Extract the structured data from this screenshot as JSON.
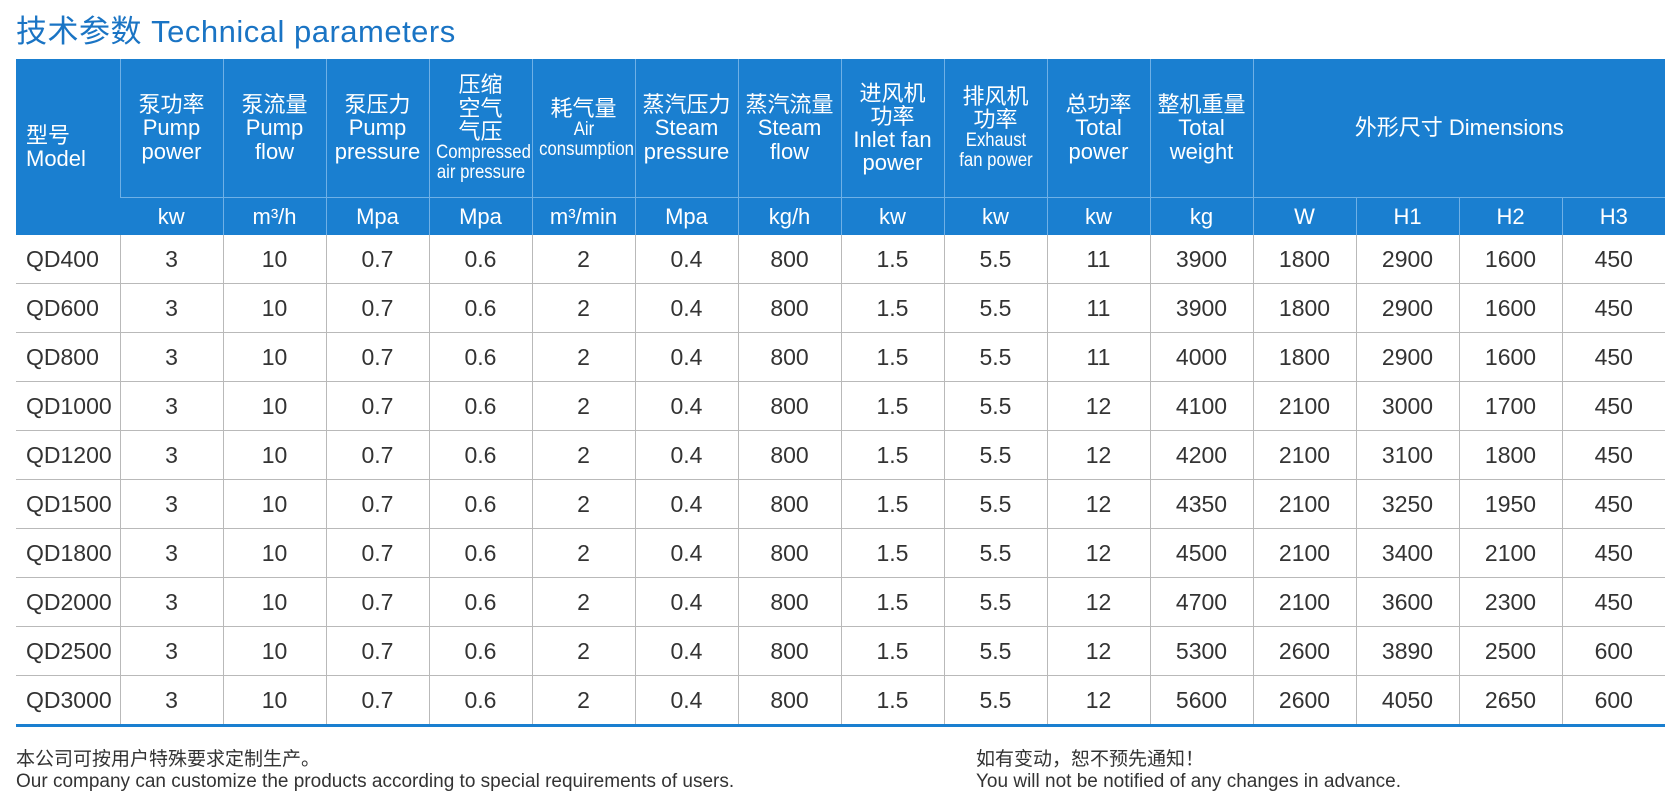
{
  "title": "技术参数 Technical parameters",
  "header": {
    "model": {
      "cn": "型号",
      "en": "Model"
    },
    "columns": [
      {
        "cn": "泵功率",
        "en": [
          "Pump",
          "power"
        ],
        "unit": "kw"
      },
      {
        "cn": "泵流量",
        "en": [
          "Pump",
          "flow"
        ],
        "unit": "m³/h"
      },
      {
        "cn": "泵压力",
        "en": [
          "Pump",
          "pressure"
        ],
        "unit": "Mpa"
      },
      {
        "cn": [
          "压缩",
          "空气",
          "气压"
        ],
        "en": [
          "Compressed",
          "air pressure"
        ],
        "unit": "Mpa"
      },
      {
        "cn": "耗气量",
        "en": [
          "Air",
          "consumption"
        ],
        "unit": "m³/min"
      },
      {
        "cn": "蒸汽压力",
        "en": [
          "Steam",
          "pressure"
        ],
        "unit": "Mpa"
      },
      {
        "cn": "蒸汽流量",
        "en": [
          "Steam",
          "flow"
        ],
        "unit": "kg/h"
      },
      {
        "cn": [
          "进风机",
          "功率"
        ],
        "en": [
          "Inlet fan",
          "power"
        ],
        "unit": "kw"
      },
      {
        "cn": [
          "排风机",
          "功率"
        ],
        "en": [
          "Exhaust",
          "fan power"
        ],
        "unit": "kw"
      },
      {
        "cn": "总功率",
        "en": [
          "Total",
          "power"
        ],
        "unit": "kw"
      },
      {
        "cn": "整机重量",
        "en": [
          "Total",
          "weight"
        ],
        "unit": "kg"
      }
    ],
    "dimensions": {
      "label": "外形尺寸 Dimensions",
      "units": [
        "W",
        "H1",
        "H2",
        "H3"
      ]
    }
  },
  "rows": [
    [
      "QD400",
      "3",
      "10",
      "0.7",
      "0.6",
      "2",
      "0.4",
      "800",
      "1.5",
      "5.5",
      "11",
      "3900",
      "1800",
      "2900",
      "1600",
      "450"
    ],
    [
      "QD600",
      "3",
      "10",
      "0.7",
      "0.6",
      "2",
      "0.4",
      "800",
      "1.5",
      "5.5",
      "11",
      "3900",
      "1800",
      "2900",
      "1600",
      "450"
    ],
    [
      "QD800",
      "3",
      "10",
      "0.7",
      "0.6",
      "2",
      "0.4",
      "800",
      "1.5",
      "5.5",
      "11",
      "4000",
      "1800",
      "2900",
      "1600",
      "450"
    ],
    [
      "QD1000",
      "3",
      "10",
      "0.7",
      "0.6",
      "2",
      "0.4",
      "800",
      "1.5",
      "5.5",
      "12",
      "4100",
      "2100",
      "3000",
      "1700",
      "450"
    ],
    [
      "QD1200",
      "3",
      "10",
      "0.7",
      "0.6",
      "2",
      "0.4",
      "800",
      "1.5",
      "5.5",
      "12",
      "4200",
      "2100",
      "3100",
      "1800",
      "450"
    ],
    [
      "QD1500",
      "3",
      "10",
      "0.7",
      "0.6",
      "2",
      "0.4",
      "800",
      "1.5",
      "5.5",
      "12",
      "4350",
      "2100",
      "3250",
      "1950",
      "450"
    ],
    [
      "QD1800",
      "3",
      "10",
      "0.7",
      "0.6",
      "2",
      "0.4",
      "800",
      "1.5",
      "5.5",
      "12",
      "4500",
      "2100",
      "3400",
      "2100",
      "450"
    ],
    [
      "QD2000",
      "3",
      "10",
      "0.7",
      "0.6",
      "2",
      "0.4",
      "800",
      "1.5",
      "5.5",
      "12",
      "4700",
      "2100",
      "3600",
      "2300",
      "450"
    ],
    [
      "QD2500",
      "3",
      "10",
      "0.7",
      "0.6",
      "2",
      "0.4",
      "800",
      "1.5",
      "5.5",
      "12",
      "5300",
      "2600",
      "3890",
      "2500",
      "600"
    ],
    [
      "QD3000",
      "3",
      "10",
      "0.7",
      "0.6",
      "2",
      "0.4",
      "800",
      "1.5",
      "5.5",
      "12",
      "5600",
      "2600",
      "4050",
      "2650",
      "600"
    ]
  ],
  "notes": {
    "left": {
      "cn": "本公司可按用户特殊要求定制生产。",
      "en": "Our company can customize the products according to special requirements of users."
    },
    "right": {
      "cn": "如有变动，恕不预先通知！",
      "en": "You will not be notified of any changes in advance."
    }
  },
  "colors": {
    "accent": "#1a7fd0",
    "title": "#1a74c4",
    "grid": "#b9b9b9"
  }
}
